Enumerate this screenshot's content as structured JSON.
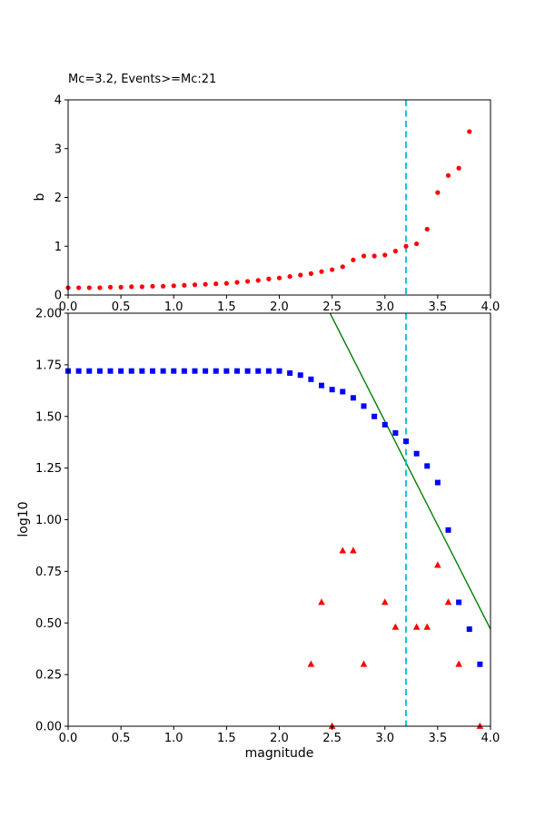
{
  "figure": {
    "background": "#ffffff",
    "frame_color": "#000000",
    "accent_cyan": "#00bfcf",
    "fit_green": "#008000",
    "marker_red": "#ff0000",
    "marker_blue": "#0000ff"
  },
  "chart_data": [
    {
      "type": "scatter",
      "name": "b-value-vs-cutoff-plot",
      "title": "Mc=3.2, Events>=Mc:21",
      "xlabel": "",
      "ylabel": "b",
      "xlim": [
        0.0,
        4.0
      ],
      "ylim": [
        0,
        4
      ],
      "grid": false,
      "legend": "none",
      "xticks": [
        0.0,
        0.5,
        1.0,
        1.5,
        2.0,
        2.5,
        3.0,
        3.5,
        4.0
      ],
      "xtick_labels": [
        "0.0",
        "0.5",
        "1.0",
        "1.5",
        "2.0",
        "2.5",
        "3.0",
        "3.5",
        "4.0"
      ],
      "yticks": [
        0,
        1,
        2,
        3,
        4
      ],
      "ytick_labels": [
        "0",
        "1",
        "2",
        "3",
        "4"
      ],
      "vline": {
        "x": 3.2,
        "color": "#00bfcf",
        "style": "dashed"
      },
      "series": [
        {
          "name": "b-values",
          "marker": "circle",
          "color": "#ff0000",
          "x": [
            0.0,
            0.1,
            0.2,
            0.3,
            0.4,
            0.5,
            0.6,
            0.7,
            0.8,
            0.9,
            1.0,
            1.1,
            1.2,
            1.3,
            1.4,
            1.5,
            1.6,
            1.7,
            1.8,
            1.9,
            2.0,
            2.1,
            2.2,
            2.3,
            2.4,
            2.5,
            2.6,
            2.7,
            2.8,
            2.9,
            3.0,
            3.1,
            3.2,
            3.3,
            3.4,
            3.5,
            3.6,
            3.7,
            3.8
          ],
          "y": [
            0.15,
            0.15,
            0.15,
            0.15,
            0.16,
            0.16,
            0.17,
            0.17,
            0.18,
            0.18,
            0.19,
            0.2,
            0.21,
            0.22,
            0.23,
            0.24,
            0.26,
            0.28,
            0.3,
            0.33,
            0.35,
            0.38,
            0.41,
            0.44,
            0.48,
            0.52,
            0.58,
            0.72,
            0.8,
            0.8,
            0.82,
            0.9,
            1.0,
            1.05,
            1.35,
            2.1,
            2.45,
            2.6,
            3.35
          ]
        }
      ]
    },
    {
      "type": "scatter",
      "name": "frequency-magnitude-plot",
      "title": "",
      "xlabel": "magnitude",
      "ylabel": "log10",
      "xlim": [
        0.0,
        4.0
      ],
      "ylim": [
        0.0,
        2.0
      ],
      "grid": false,
      "legend": "none",
      "xticks": [
        0.0,
        0.5,
        1.0,
        1.5,
        2.0,
        2.5,
        3.0,
        3.5,
        4.0
      ],
      "xtick_labels": [
        "0.0",
        "0.5",
        "1.0",
        "1.5",
        "2.0",
        "2.5",
        "3.0",
        "3.5",
        "4.0"
      ],
      "yticks": [
        0.0,
        0.25,
        0.5,
        0.75,
        1.0,
        1.25,
        1.5,
        1.75,
        2.0
      ],
      "ytick_labels": [
        "0.00",
        "0.25",
        "0.50",
        "0.75",
        "1.00",
        "1.25",
        "1.50",
        "1.75",
        "2.00"
      ],
      "vline": {
        "x": 3.2,
        "color": "#00bfcf",
        "style": "dashed"
      },
      "fit_line": {
        "x": [
          2.48,
          4.0
        ],
        "y": [
          2.0,
          0.47
        ],
        "color": "#008000"
      },
      "series": [
        {
          "name": "cumulative-events",
          "marker": "square",
          "color": "#0000ff",
          "x": [
            0.0,
            0.1,
            0.2,
            0.3,
            0.4,
            0.5,
            0.6,
            0.7,
            0.8,
            0.9,
            1.0,
            1.1,
            1.2,
            1.3,
            1.4,
            1.5,
            1.6,
            1.7,
            1.8,
            1.9,
            2.0,
            2.1,
            2.2,
            2.3,
            2.4,
            2.5,
            2.6,
            2.7,
            2.8,
            2.9,
            3.0,
            3.1,
            3.2,
            3.3,
            3.4,
            3.5,
            3.6,
            3.7,
            3.8,
            3.9
          ],
          "y": [
            1.72,
            1.72,
            1.72,
            1.72,
            1.72,
            1.72,
            1.72,
            1.72,
            1.72,
            1.72,
            1.72,
            1.72,
            1.72,
            1.72,
            1.72,
            1.72,
            1.72,
            1.72,
            1.72,
            1.72,
            1.72,
            1.71,
            1.7,
            1.68,
            1.65,
            1.63,
            1.62,
            1.59,
            1.55,
            1.5,
            1.46,
            1.42,
            1.38,
            1.32,
            1.26,
            1.18,
            0.95,
            0.6,
            0.47,
            0.3
          ]
        },
        {
          "name": "binned-events",
          "marker": "triangle",
          "color": "#ff0000",
          "x": [
            2.3,
            2.4,
            2.5,
            2.6,
            2.7,
            2.8,
            3.0,
            3.1,
            3.3,
            3.4,
            3.5,
            3.6,
            3.7,
            3.9
          ],
          "y": [
            0.3,
            0.6,
            0.0,
            0.85,
            0.85,
            0.3,
            0.6,
            0.48,
            0.48,
            0.48,
            0.78,
            0.6,
            0.3,
            0.0
          ]
        }
      ]
    }
  ]
}
